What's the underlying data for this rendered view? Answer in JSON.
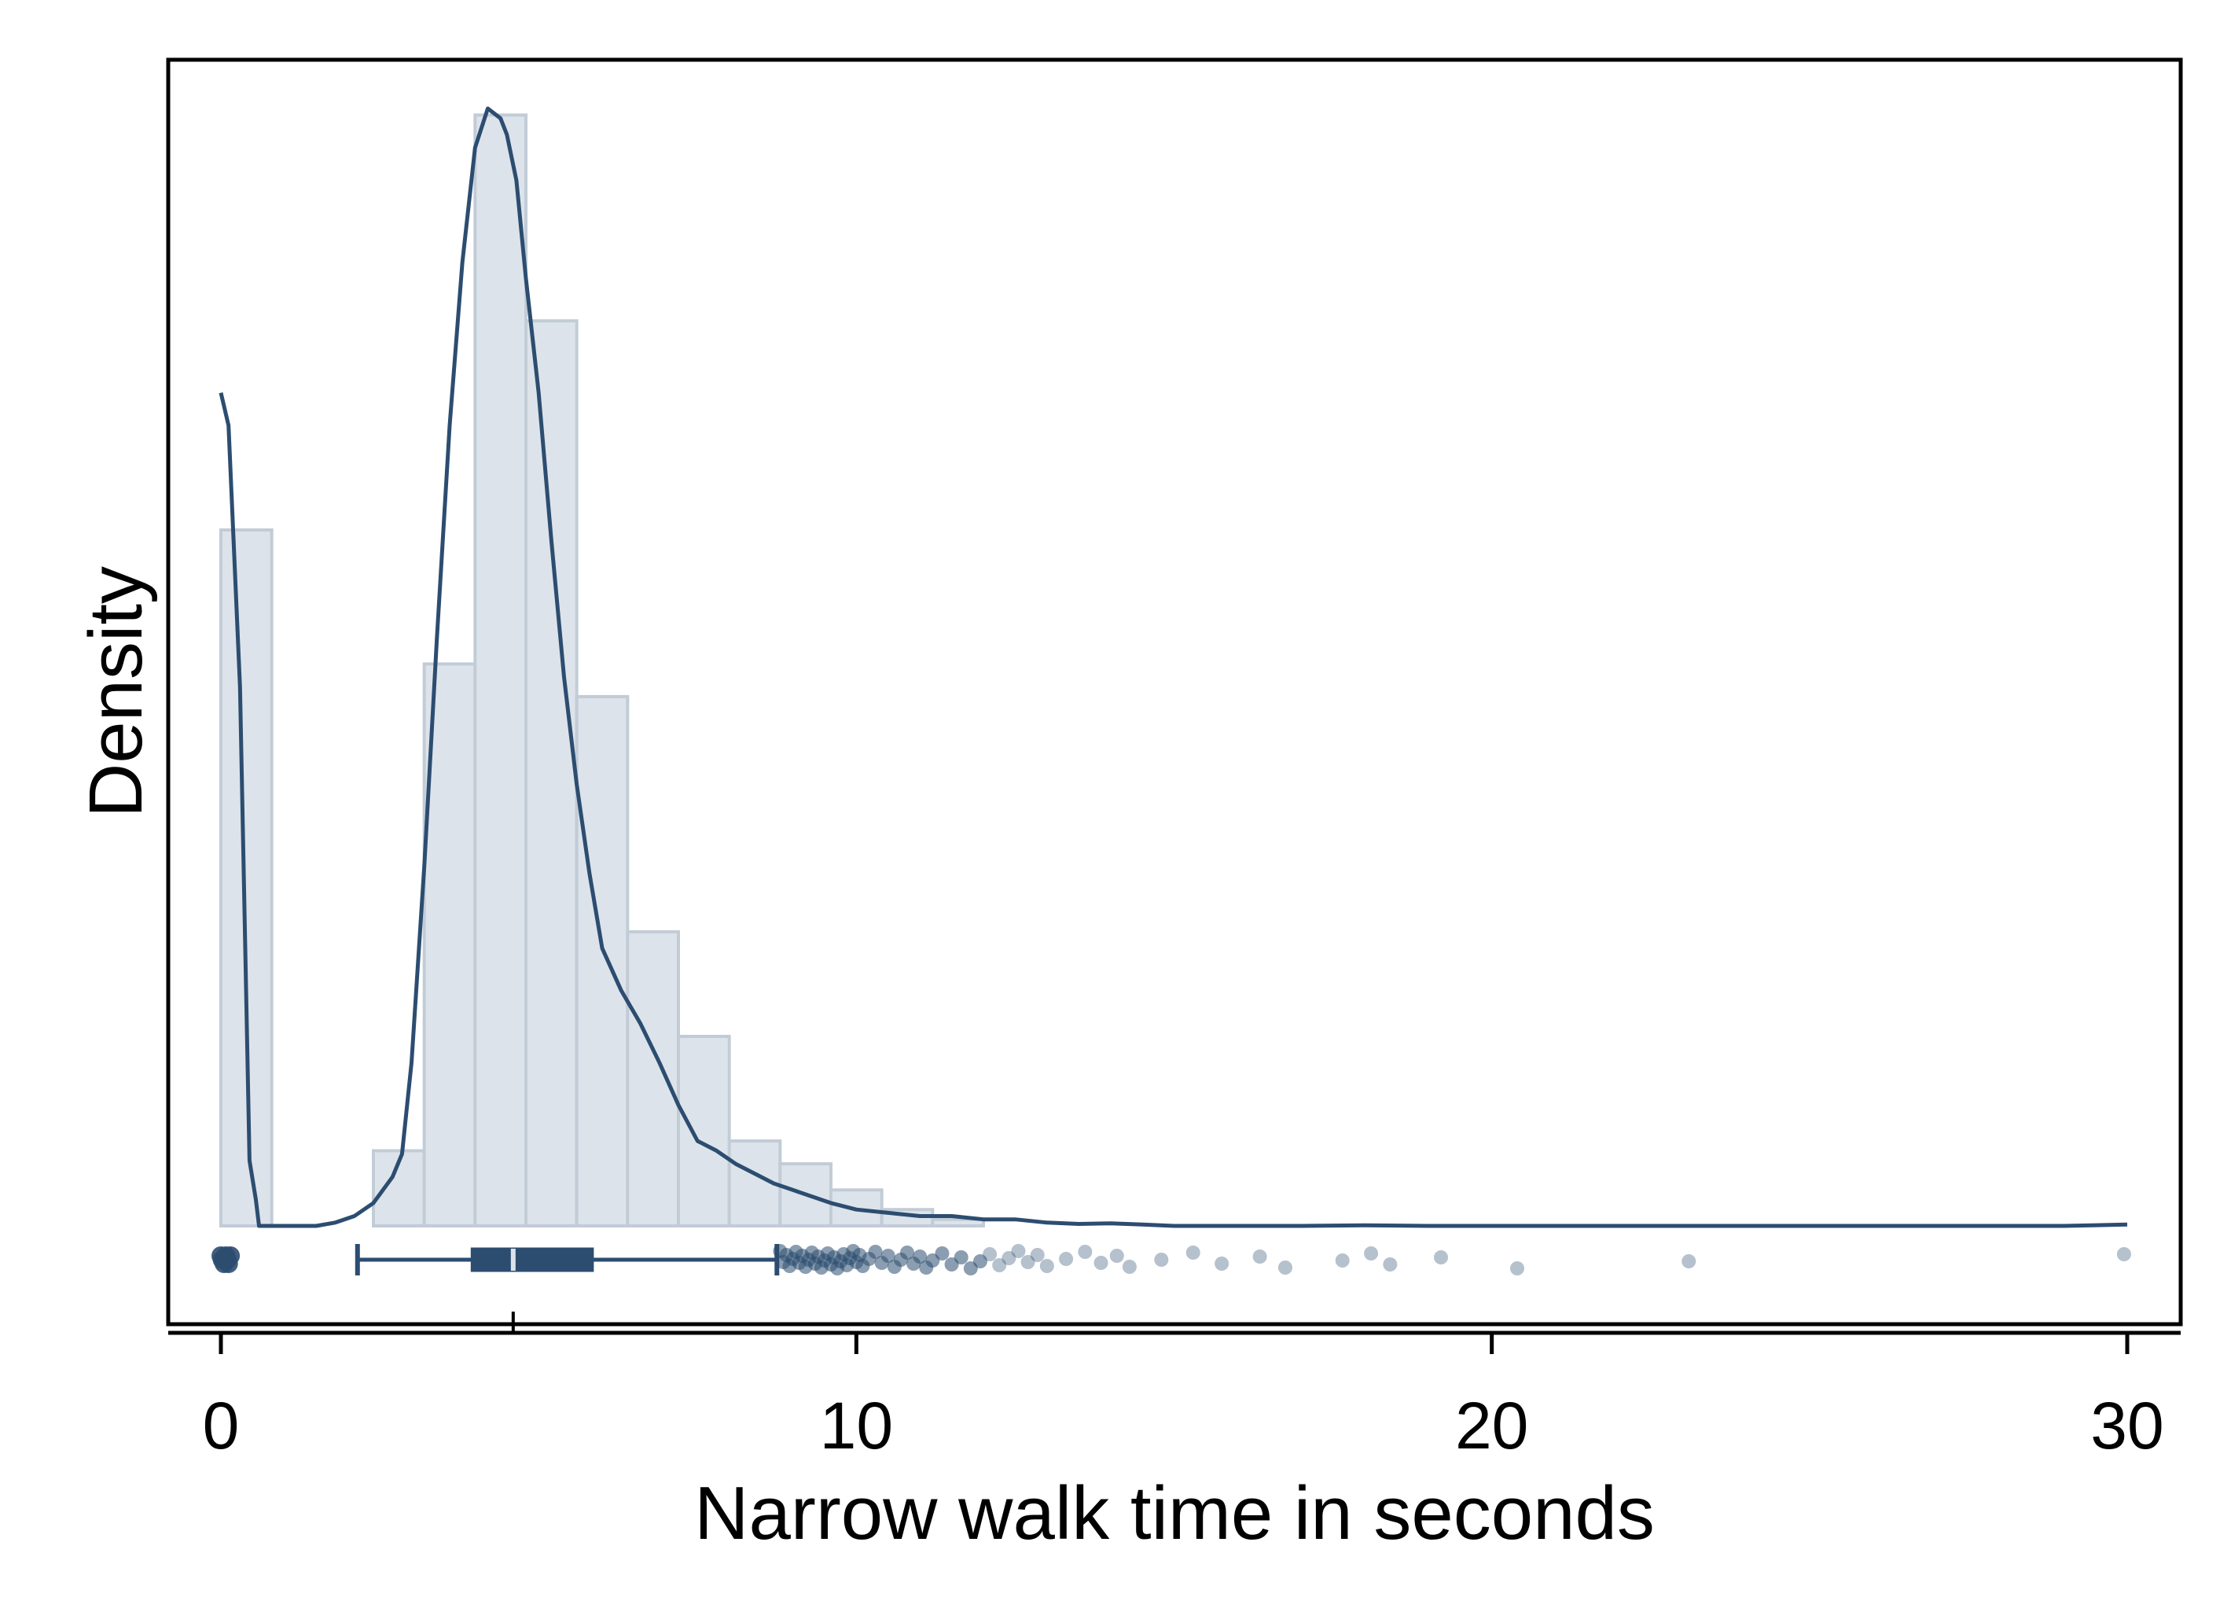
{
  "chart_data": {
    "type": "histogram",
    "xlabel": "Narrow walk time in seconds",
    "ylabel": "Density",
    "xlim": [
      -0.8,
      30.8
    ],
    "x_ticks": [
      0,
      10,
      20,
      30
    ],
    "y_ticks": [],
    "grid": false,
    "legend": "none",
    "histogram": {
      "bin_width": 0.8,
      "bins": [
        {
          "x0": 0.0,
          "x1": 0.8,
          "density": 0.213
        },
        {
          "x0": 0.8,
          "x1": 1.6,
          "density": 0.0
        },
        {
          "x0": 1.6,
          "x1": 2.4,
          "density": 0.0
        },
        {
          "x0": 2.4,
          "x1": 3.2,
          "density": 0.023
        },
        {
          "x0": 3.2,
          "x1": 4.0,
          "density": 0.172
        },
        {
          "x0": 4.0,
          "x1": 4.8,
          "density": 0.34
        },
        {
          "x0": 4.8,
          "x1": 5.6,
          "density": 0.277
        },
        {
          "x0": 5.6,
          "x1": 6.4,
          "density": 0.162
        },
        {
          "x0": 6.4,
          "x1": 7.2,
          "density": 0.09
        },
        {
          "x0": 7.2,
          "x1": 8.0,
          "density": 0.058
        },
        {
          "x0": 8.0,
          "x1": 8.8,
          "density": 0.026
        },
        {
          "x0": 8.8,
          "x1": 9.6,
          "density": 0.019
        },
        {
          "x0": 9.6,
          "x1": 10.4,
          "density": 0.011
        },
        {
          "x0": 10.4,
          "x1": 11.2,
          "density": 0.005
        },
        {
          "x0": 11.2,
          "x1": 12.0,
          "density": 0.002
        }
      ]
    },
    "kde": {
      "x": [
        0.0,
        0.12,
        0.3,
        0.45,
        0.55,
        0.6,
        1.0,
        1.5,
        1.8,
        2.1,
        2.4,
        2.7,
        2.85,
        3.0,
        3.2,
        3.4,
        3.6,
        3.8,
        4.0,
        4.2,
        4.4,
        4.5,
        4.65,
        4.8,
        5.0,
        5.2,
        5.4,
        5.6,
        5.8,
        6.0,
        6.3,
        6.6,
        6.9,
        7.2,
        7.5,
        7.8,
        8.1,
        8.4,
        8.7,
        9.0,
        9.3,
        9.6,
        10.0,
        10.5,
        11.0,
        11.5,
        12.0,
        12.5,
        13.0,
        13.5,
        14.0,
        14.5,
        15.0,
        16.0,
        17.0,
        18.0,
        19.0,
        20.0,
        21.0,
        22.0,
        23.0,
        24.0,
        25.0,
        26.0,
        27.0,
        28.0,
        29.0,
        30.0
      ],
      "y": [
        0.255,
        0.245,
        0.165,
        0.02,
        0.008,
        0.0,
        0.0,
        0.0,
        0.001,
        0.003,
        0.007,
        0.015,
        0.022,
        0.05,
        0.11,
        0.18,
        0.245,
        0.295,
        0.33,
        0.342,
        0.339,
        0.334,
        0.32,
        0.29,
        0.255,
        0.21,
        0.168,
        0.135,
        0.108,
        0.085,
        0.072,
        0.062,
        0.05,
        0.037,
        0.026,
        0.023,
        0.019,
        0.016,
        0.013,
        0.011,
        0.009,
        0.007,
        0.005,
        0.004,
        0.003,
        0.003,
        0.002,
        0.002,
        0.001,
        0.0006,
        0.0008,
        0.0004,
        0.0,
        0.0,
        0.0,
        0.0002,
        0.0,
        0.0,
        0.0,
        0.0,
        0.0,
        0.0,
        0.0,
        0.0,
        0.0,
        0.0,
        0.0,
        0.0004
      ]
    },
    "boxplot": {
      "whisker_low": 2.15,
      "q1": 3.95,
      "median": 4.6,
      "q3": 5.85,
      "whisker_high": 8.75,
      "outliers_low": [
        0.0,
        0.02,
        0.05,
        0.08,
        0.1,
        0.12,
        0.15
      ],
      "outliers_high": [
        8.8,
        8.85,
        8.9,
        8.95,
        9.0,
        9.05,
        9.1,
        9.15,
        9.2,
        9.25,
        9.3,
        9.35,
        9.4,
        9.45,
        9.5,
        9.55,
        9.6,
        9.65,
        9.7,
        9.75,
        9.8,
        9.85,
        9.9,
        9.95,
        10.0,
        10.05,
        10.1,
        10.2,
        10.3,
        10.4,
        10.5,
        10.6,
        10.7,
        10.8,
        10.9,
        11.0,
        11.1,
        11.2,
        11.35,
        11.5,
        11.65,
        11.8,
        11.95,
        12.1,
        12.25,
        12.4,
        12.55,
        12.7,
        12.85,
        13.0,
        13.3,
        13.6,
        13.85,
        14.1,
        14.3,
        14.8,
        15.3,
        15.75,
        16.35,
        16.75,
        17.65,
        18.1,
        18.4,
        19.2,
        20.4,
        23.1,
        29.95
      ]
    },
    "colors": {
      "bar_fill": "#dde3ea",
      "bar_stroke": "#c2ccd7",
      "line": "#2c4d70",
      "box": "#2c4d70",
      "outlier": "#2c4d70"
    }
  }
}
